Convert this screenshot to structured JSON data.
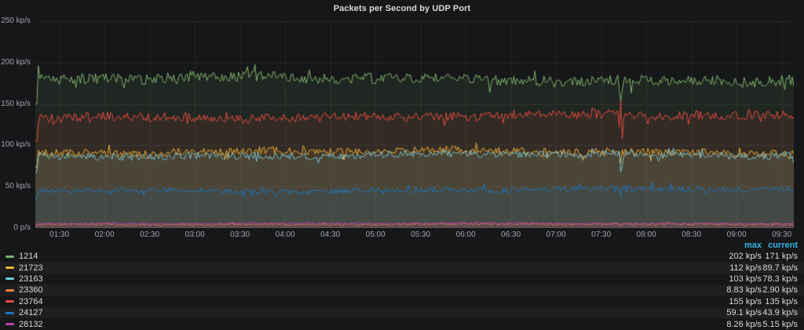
{
  "panel": {
    "title": "Packets per Second by UDP Port"
  },
  "colors": {
    "background": "#161719",
    "grid": "#242628",
    "axis_text": "#9ea3aa",
    "title_text": "#d8d9da",
    "legend_header": "#33b5e5",
    "legend_text": "#d8d9da",
    "legend_stripe": "rgba(255,255,255,0.035)"
  },
  "chart_data": {
    "type": "line",
    "title": "Packets per Second by UDP Port",
    "xlabel": "",
    "ylabel": "",
    "ylim_kps": [
      0,
      250
    ],
    "x_start": "01:14",
    "x_end": "09:38",
    "x_ticks": [
      "01:30",
      "02:00",
      "02:30",
      "03:00",
      "03:30",
      "04:00",
      "04:30",
      "05:00",
      "05:30",
      "06:00",
      "06:30",
      "07:00",
      "07:30",
      "08:00",
      "08:30",
      "09:00",
      "09:30"
    ],
    "y_ticks": [
      {
        "kps": 0,
        "label": "0 p/s"
      },
      {
        "kps": 50,
        "label": "50 kp/s"
      },
      {
        "kps": 100,
        "label": "100 kp/s"
      },
      {
        "kps": 150,
        "label": "150 kp/s"
      },
      {
        "kps": 200,
        "label": "200 kp/s"
      },
      {
        "kps": 250,
        "label": "250 kp/s"
      }
    ],
    "grid": true,
    "fill_opacity": 0.1,
    "legend_position": "bottom-table",
    "legend_columns": [
      "max",
      "current"
    ],
    "anomaly_time": "07:43",
    "series": [
      {
        "name": "1214",
        "color": "#7EB26D",
        "base_kps": 180,
        "wander_kps": 5,
        "noise_kps": 6.5,
        "spike_kps": 13,
        "min_kps": 150,
        "max_clamp_kps": 202,
        "current_kps": 171,
        "max_label": "202 kp/s",
        "current_label": "171 kp/s",
        "anomaly_kps": [
          168,
          152,
          166
        ]
      },
      {
        "name": "21723",
        "color": "#EAB839",
        "base_kps": 92,
        "wander_kps": 3,
        "noise_kps": 4.5,
        "spike_kps": 9,
        "min_kps": 74,
        "max_clamp_kps": 112,
        "current_kps": 89.7,
        "max_label": "112 kp/s",
        "current_label": "89.7 kp/s",
        "anomaly_kps": [
          null,
          78,
          null
        ]
      },
      {
        "name": "23163",
        "color": "#6ED0E0",
        "base_kps": 88,
        "wander_kps": 3,
        "noise_kps": 4.5,
        "spike_kps": 8,
        "min_kps": 66,
        "max_clamp_kps": 103,
        "current_kps": 78.3,
        "max_label": "103 kp/s",
        "current_label": "78.3 kp/s",
        "anomaly_kps": [
          null,
          68,
          76
        ]
      },
      {
        "name": "23360",
        "color": "#EF843C",
        "base_kps": 4.6,
        "wander_kps": 0.8,
        "noise_kps": 1.3,
        "spike_kps": 2.6,
        "min_kps": 1.6,
        "max_clamp_kps": 8.83,
        "current_kps": 2.9,
        "max_label": "8.83 kp/s",
        "current_label": "2.90 kp/s",
        "anomaly_kps": null
      },
      {
        "name": "23764",
        "color": "#E24D42",
        "base_kps": 135,
        "wander_kps": 4,
        "noise_kps": 5.5,
        "spike_kps": 10,
        "min_kps": 105,
        "max_clamp_kps": 155,
        "current_kps": 135,
        "max_label": "155 kp/s",
        "current_label": "135 kp/s",
        "anomaly_kps": [
          122,
          155,
          108
        ]
      },
      {
        "name": "24127",
        "color": "#1F78C1",
        "base_kps": 46,
        "wander_kps": 3,
        "noise_kps": 3.2,
        "spike_kps": 6.5,
        "min_kps": 34,
        "max_clamp_kps": 59.1,
        "current_kps": 43.9,
        "max_label": "59.1 kp/s",
        "current_label": "43.9 kp/s",
        "anomaly_kps": [
          null,
          38,
          null
        ]
      },
      {
        "name": "28132",
        "color": "#BA43A9",
        "base_kps": 5.6,
        "wander_kps": 0.7,
        "noise_kps": 1.0,
        "spike_kps": 1.8,
        "min_kps": 2.6,
        "max_clamp_kps": 8.26,
        "current_kps": 5.15,
        "max_label": "8.26 kp/s",
        "current_label": "5.15 kp/s",
        "anomaly_kps": null
      }
    ]
  }
}
